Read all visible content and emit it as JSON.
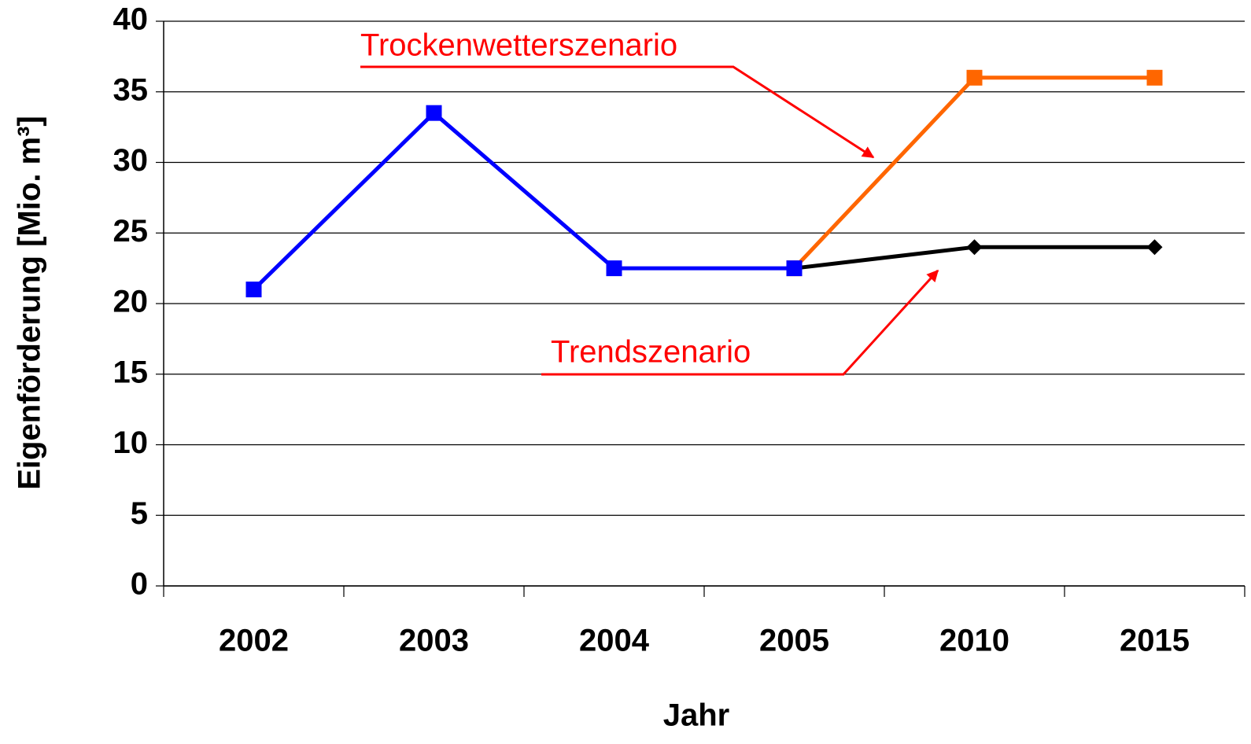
{
  "chart_data": {
    "type": "line",
    "categories": [
      "2002",
      "2003",
      "2004",
      "2005",
      "2010",
      "2015"
    ],
    "series": [
      {
        "name": "Trendszenario",
        "color": "#000000",
        "marker": "diamond",
        "values": [
          null,
          null,
          null,
          22.5,
          24,
          24
        ]
      },
      {
        "name": "Trockenwetterszenario",
        "color": "#ff6600",
        "marker": "square",
        "values": [
          null,
          null,
          null,
          22.5,
          36,
          36
        ]
      },
      {
        "color": "#0000ff",
        "marker": "square",
        "values": [
          21,
          33.5,
          22.5,
          22.5,
          null,
          null
        ]
      }
    ],
    "xlabel": "Jahr",
    "ylabel": "Eigenförderung [Mio. m³]",
    "ylim": [
      0,
      40
    ],
    "yticks": [
      0,
      5,
      10,
      15,
      20,
      25,
      30,
      35,
      40
    ],
    "grid": true
  }
}
